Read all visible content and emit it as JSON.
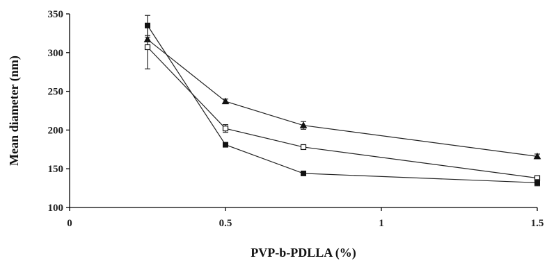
{
  "chart_data": {
    "type": "line",
    "title": "",
    "xlabel": "PVP-b-PDLLA (%)",
    "ylabel": "Mean diameter (nm)",
    "xlim": [
      0,
      1.5
    ],
    "ylim": [
      100,
      350
    ],
    "xticks": [
      0,
      0.5,
      1,
      1.5
    ],
    "xtick_labels": [
      "0",
      "0.5",
      "1",
      "1.5"
    ],
    "yticks": [
      100,
      150,
      200,
      250,
      300,
      350
    ],
    "ytick_labels": [
      "100",
      "150",
      "200",
      "250",
      "300",
      "350"
    ],
    "grid": false,
    "legend": "none",
    "series": [
      {
        "marker": "triangle",
        "x": [
          0.25,
          0.5,
          0.75,
          1.5
        ],
        "y": [
          317,
          237,
          206,
          166
        ],
        "err": [
          3,
          3,
          5,
          3
        ]
      },
      {
        "marker": "open-square",
        "x": [
          0.25,
          0.5,
          0.75,
          1.5
        ],
        "y": [
          307,
          202,
          178,
          138
        ],
        "err": [
          28,
          5,
          3,
          3
        ]
      },
      {
        "marker": "filled-square",
        "x": [
          0.25,
          0.5,
          0.75,
          1.5
        ],
        "y": [
          335,
          181,
          144,
          132
        ],
        "err": [
          13,
          2,
          2,
          4
        ]
      }
    ]
  }
}
